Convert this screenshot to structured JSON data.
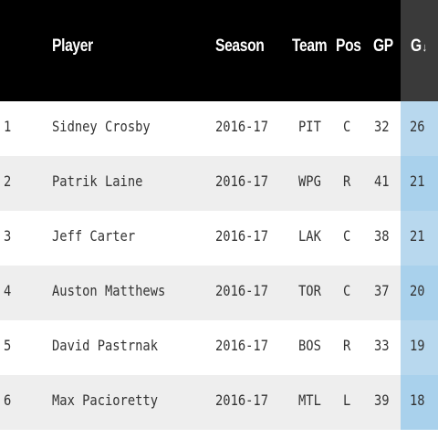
{
  "table": {
    "columns": {
      "player": "Player",
      "season": "Season",
      "team": "Team",
      "pos": "Pos",
      "gp": "GP",
      "g": "G",
      "sort_indicator": "↓"
    },
    "rows": [
      {
        "rank": "1",
        "player": "Sidney Crosby",
        "season": "2016-17",
        "team": "PIT",
        "pos": "C",
        "gp": "32",
        "g": "26"
      },
      {
        "rank": "2",
        "player": "Patrik Laine",
        "season": "2016-17",
        "team": "WPG",
        "pos": "R",
        "gp": "41",
        "g": "21"
      },
      {
        "rank": "3",
        "player": "Jeff Carter",
        "season": "2016-17",
        "team": "LAK",
        "pos": "C",
        "gp": "38",
        "g": "21"
      },
      {
        "rank": "4",
        "player": "Auston Matthews",
        "season": "2016-17",
        "team": "TOR",
        "pos": "C",
        "gp": "37",
        "g": "20"
      },
      {
        "rank": "5",
        "player": "David Pastrnak",
        "season": "2016-17",
        "team": "BOS",
        "pos": "R",
        "gp": "33",
        "g": "19"
      },
      {
        "rank": "6",
        "player": "Max Pacioretty",
        "season": "2016-17",
        "team": "MTL",
        "pos": "L",
        "gp": "39",
        "g": "18"
      }
    ]
  },
  "colors": {
    "header_bg": "#000000",
    "sorted_header_bg": "#3a3a3a",
    "sorted_cell_bg": "#b8d8ee",
    "alt_row_bg": "#eeeeee",
    "text": "#333333"
  }
}
